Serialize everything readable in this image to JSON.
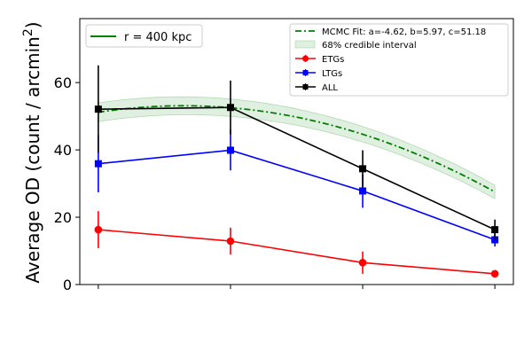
{
  "chart_data": {
    "type": "line",
    "title": "",
    "xlabel": "",
    "ylabel": "Average OD (count / arcmin",
    "ylabel_superscript": "2",
    "ylabel_close": ")",
    "x": [
      0,
      1,
      2,
      3
    ],
    "xlim": [
      -0.14,
      3.14
    ],
    "ylim": [
      0,
      79
    ],
    "yticks": [
      0,
      20,
      40,
      60
    ],
    "xtick_labels": [
      "",
      "",
      "",
      ""
    ],
    "grid": false,
    "series": [
      {
        "name": "ETGs",
        "color": "#ff0000",
        "marker": "circle",
        "values": [
          16.3,
          12.9,
          6.5,
          3.2
        ],
        "err": [
          [
            5.5,
            5.5
          ],
          [
            4.0,
            4.0
          ],
          [
            3.3,
            3.3
          ],
          [
            0.8,
            0.8
          ]
        ]
      },
      {
        "name": "LTGs",
        "color": "#0000ff",
        "marker": "square",
        "values": [
          35.9,
          39.9,
          27.8,
          13.3
        ],
        "err": [
          [
            8.5,
            8.5
          ],
          [
            6.0,
            6.0
          ],
          [
            5.0,
            5.0
          ],
          [
            2.0,
            2.0
          ]
        ]
      },
      {
        "name": "ALL",
        "color": "#000000",
        "marker": "square",
        "values": [
          52.1,
          52.6,
          34.4,
          16.3
        ],
        "err": [
          [
            13.0,
            13.0
          ],
          [
            8.0,
            8.0
          ],
          [
            5.5,
            5.5
          ],
          [
            3.0,
            3.0
          ]
        ]
      }
    ],
    "fit": {
      "name": "MCMC Fit: a=-4.62, b=5.97, c=51.18",
      "color": "#008000",
      "a": -4.62,
      "b": 5.97,
      "c": 51.18,
      "band_label": "68% credible interval",
      "band_half_width": [
        2.8,
        2.6,
        2.3,
        2.0
      ]
    },
    "annotation_line": {
      "name": "r = 400 kpc",
      "color": "#008000"
    },
    "legend_upper_left_position": "upper-left",
    "legend_upper_right_position": "upper-right"
  }
}
